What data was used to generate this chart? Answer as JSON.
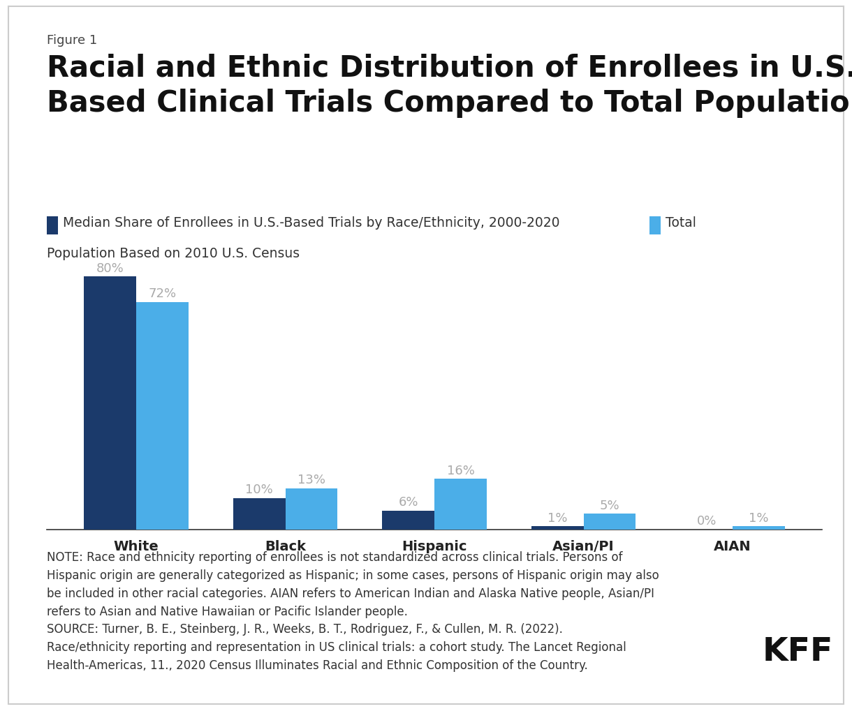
{
  "figure_label": "Figure 1",
  "title_line1": "Racial and Ethnic Distribution of Enrollees in U.S.-",
  "title_line2": "Based Clinical Trials Compared to Total Population",
  "legend_line1_text": "Median Share of Enrollees in U.S.-Based Trials by Race/Ethnicity, 2000-2020",
  "legend_line1_suffix": "  Total",
  "legend_line2_text": "Population Based on 2010 U.S. Census",
  "categories": [
    "White",
    "Black",
    "Hispanic",
    "Asian/PI",
    "AIAN"
  ],
  "trial_values": [
    80,
    10,
    6,
    1,
    0
  ],
  "population_values": [
    72,
    13,
    16,
    5,
    1
  ],
  "trial_labels": [
    "80%",
    "10%",
    "6%",
    "1%",
    "0%"
  ],
  "population_labels": [
    "72%",
    "13%",
    "16%",
    "5%",
    "1%"
  ],
  "color_trial": "#1b3a6b",
  "color_population": "#4baee8",
  "background_color": "#ffffff",
  "border_color": "#cccccc",
  "ylim": [
    0,
    90
  ],
  "bar_width": 0.35,
  "note_text": "NOTE: Race and ethnicity reporting of enrollees is not standardized across clinical trials. Persons of\nHispanic origin are generally categorized as Hispanic; in some cases, persons of Hispanic origin may also\nbe included in other racial categories. AIAN refers to American Indian and Alaska Native people, Asian/PI\nrefers to Asian and Native Hawaiian or Pacific Islander people.\nSOURCE: Turner, B. E., Steinberg, J. R., Weeks, B. T., Rodriguez, F., & Cullen, M. R. (2022).\nRace/ethnicity reporting and representation in US clinical trials: a cohort study. The Lancet Regional\nHealth-Americas, 11., 2020 Census Illuminates Racial and Ethnic Composition of the Country.",
  "kff_label": "KFF",
  "value_label_color": "#aaaaaa",
  "title_fontsize": 30,
  "figure_label_fontsize": 13,
  "legend_fontsize": 13.5,
  "axis_tick_fontsize": 14,
  "note_fontsize": 12,
  "kff_fontsize": 34,
  "value_fontsize": 13
}
